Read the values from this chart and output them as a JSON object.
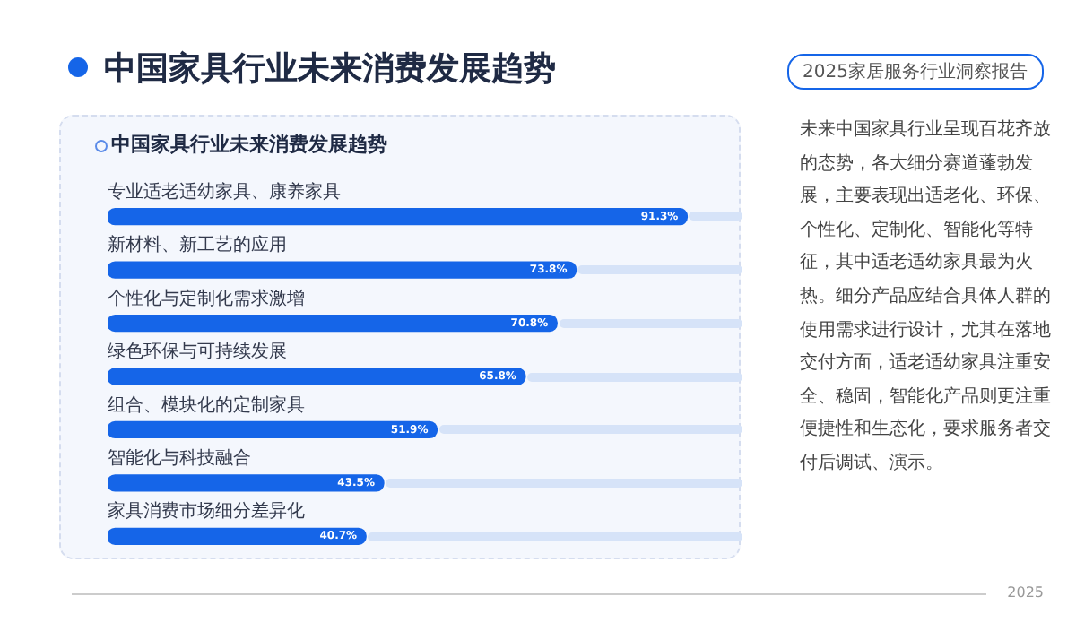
{
  "chart_data": {
    "type": "bar",
    "orientation": "horizontal",
    "title": "中国家具行业未来消费发展趋势",
    "subtitle": "中国家具行业未来消费发展趋势",
    "categories": [
      "专业适老适幼家具、康养家具",
      "新材料、新工艺的应用",
      "个性化与定制化需求激增",
      "绿色环保与可持续发展",
      "组合、模块化的定制家具",
      "智能化与科技融合",
      "家具消费市场细分差异化"
    ],
    "values": [
      91.3,
      73.8,
      70.8,
      65.8,
      51.9,
      43.5,
      40.7
    ],
    "value_labels": [
      "91.3%",
      "73.8%",
      "70.8%",
      "65.8%",
      "51.9%",
      "43.5%",
      "40.7%"
    ],
    "color": "#1565e8",
    "tick_labels": false,
    "annotations": [
      "未来中国家具行业呈现百花齐放的态势，各大细分赛道蓬勃发展，主要表现出适老化、环保、个性化、定制化、智能化等特征，其中适老适幼家具最为火热。细分产品应结合具体人群的使用需求进行设计，尤其在落地交付方面，适老适幼家具注重安全、稳固，智能化产品则更注重便捷性和生态化，要求服务者交付后调试、演示。",
      "2025家居服务行业洞察报告",
      "2025"
    ]
  }
}
